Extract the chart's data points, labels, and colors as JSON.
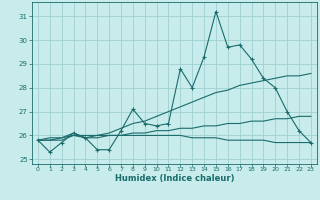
{
  "xlabel": "Humidex (Indice chaleur)",
  "bg_color": "#c8ecec",
  "grid_color": "#a0d0d0",
  "line_color": "#1a6b6b",
  "x": [
    0,
    1,
    2,
    3,
    4,
    5,
    6,
    7,
    8,
    9,
    10,
    11,
    12,
    13,
    14,
    15,
    16,
    17,
    18,
    19,
    20,
    21,
    22,
    23
  ],
  "y_main": [
    25.8,
    25.3,
    25.7,
    26.1,
    25.9,
    25.4,
    25.4,
    26.2,
    27.1,
    26.5,
    26.4,
    26.5,
    28.8,
    28.0,
    29.3,
    31.2,
    29.7,
    29.8,
    29.2,
    28.4,
    28.0,
    27.0,
    26.2,
    25.7
  ],
  "y_line1": [
    25.8,
    25.8,
    25.9,
    26.1,
    25.9,
    26.0,
    26.1,
    26.3,
    26.5,
    26.6,
    26.8,
    27.0,
    27.2,
    27.4,
    27.6,
    27.8,
    27.9,
    28.1,
    28.2,
    28.3,
    28.4,
    28.5,
    28.5,
    28.6
  ],
  "y_line2": [
    25.8,
    25.8,
    25.8,
    26.0,
    25.9,
    25.9,
    26.0,
    26.0,
    26.1,
    26.1,
    26.2,
    26.2,
    26.3,
    26.3,
    26.4,
    26.4,
    26.5,
    26.5,
    26.6,
    26.6,
    26.7,
    26.7,
    26.8,
    26.8
  ],
  "y_flat": [
    25.8,
    25.9,
    25.9,
    26.0,
    26.0,
    26.0,
    26.0,
    26.0,
    26.0,
    26.0,
    26.0,
    26.0,
    26.0,
    25.9,
    25.9,
    25.9,
    25.8,
    25.8,
    25.8,
    25.8,
    25.7,
    25.7,
    25.7,
    25.7
  ],
  "ylim": [
    24.8,
    31.6
  ],
  "yticks": [
    25,
    26,
    27,
    28,
    29,
    30,
    31
  ],
  "xticks": [
    0,
    1,
    2,
    3,
    4,
    5,
    6,
    7,
    8,
    9,
    10,
    11,
    12,
    13,
    14,
    15,
    16,
    17,
    18,
    19,
    20,
    21,
    22,
    23
  ]
}
